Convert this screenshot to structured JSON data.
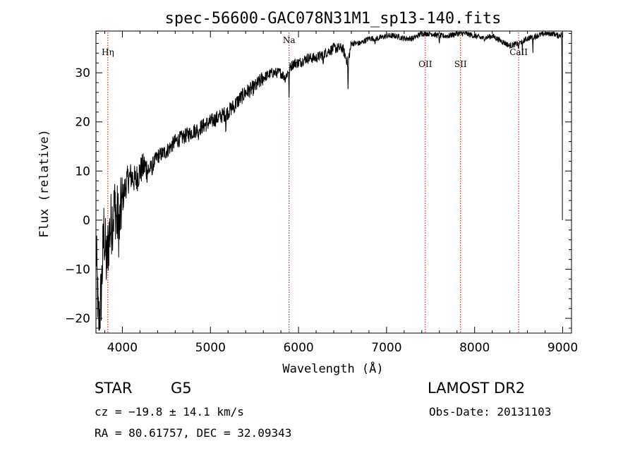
{
  "chart_data": {
    "type": "line",
    "title": "spec-56600-GAC078N31M1_sp13-140.fits",
    "xlabel": "Wavelength (Å)",
    "ylabel": "Flux (relative)",
    "xlim": [
      3700,
      9100
    ],
    "ylim": [
      -23,
      38.5
    ],
    "xticks": [
      4000,
      5000,
      6000,
      7000,
      8000,
      9000
    ],
    "yticks": [
      -20,
      -10,
      0,
      10,
      20,
      30
    ],
    "grid": false,
    "series": [
      {
        "x": [
          3700,
          3730,
          3760,
          3790,
          3820,
          3850,
          3880,
          3920,
          3960,
          4000,
          4050,
          4100,
          4150,
          4200,
          4250,
          4300,
          4400,
          4500,
          4600,
          4700,
          4800,
          4900,
          5000,
          5100,
          5200,
          5300,
          5400,
          5500,
          5600,
          5700,
          5800,
          5850,
          5900,
          5950,
          6000,
          6100,
          6200,
          6300,
          6400,
          6500,
          6560,
          6600,
          6700,
          6800,
          6900,
          7000,
          7100,
          7200,
          7300,
          7400,
          7500,
          7600,
          7700,
          7800,
          7900,
          8000,
          8100,
          8200,
          8300,
          8400,
          8500,
          8600,
          8700,
          8800,
          8900,
          8950,
          8990,
          9000
        ],
        "y": [
          -5,
          -22,
          -15,
          -2,
          -9,
          -3,
          0,
          3,
          -1,
          4,
          8,
          9,
          8,
          10,
          11,
          10,
          13,
          14,
          16,
          17,
          18,
          19,
          20,
          21,
          22,
          24,
          26,
          27,
          29,
          30,
          30,
          29,
          31,
          32,
          32,
          33,
          33,
          34,
          35,
          35,
          32,
          36,
          36,
          37,
          37,
          37.5,
          37.5,
          37,
          37,
          38,
          38,
          37.5,
          37.5,
          38,
          38,
          37.5,
          37,
          37.5,
          36.5,
          35.5,
          36,
          37,
          37.5,
          38,
          38,
          37.5,
          38,
          0
        ]
      }
    ],
    "spectral_lines": [
      {
        "label": "Hη",
        "x": 3835
      },
      {
        "label": "Na",
        "x": 5893
      },
      {
        "label": "OII",
        "x": 7440
      },
      {
        "label": "SII",
        "x": 7840
      },
      {
        "label": "CaII",
        "x": 8500
      }
    ],
    "line_color": "#000000",
    "marker_line_color": "#cc0000"
  },
  "info": {
    "object_class": "STAR",
    "subclass": "G5",
    "survey": "LAMOST DR2",
    "cz_text": "cz = −19.8 ± 14.1 km/s",
    "obs_date_text": "Obs-Date: 20131103",
    "coords_text": "RA =  80.61757, DEC =  32.09343"
  }
}
